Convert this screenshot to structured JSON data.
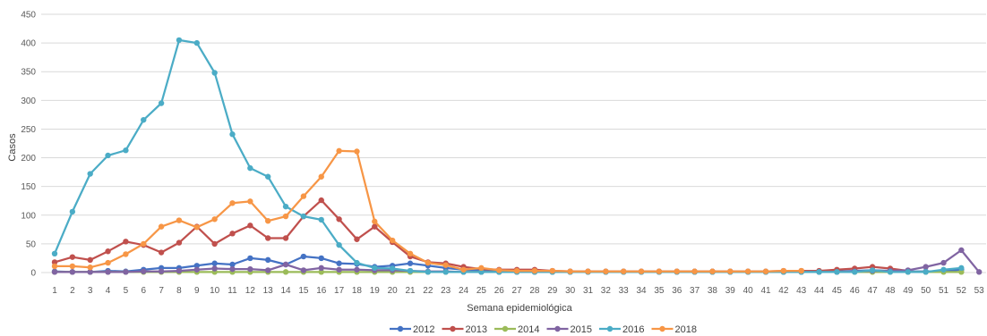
{
  "chart_data": {
    "type": "line",
    "xlabel": "Semana epidemiológica",
    "ylabel": "Casos",
    "ylim": [
      0,
      450
    ],
    "yticks": [
      0,
      50,
      100,
      150,
      200,
      250,
      300,
      350,
      400,
      450
    ],
    "grid": true,
    "legend_position": "bottom",
    "x": [
      1,
      2,
      3,
      4,
      5,
      6,
      7,
      8,
      9,
      10,
      11,
      12,
      13,
      14,
      15,
      16,
      17,
      18,
      19,
      20,
      21,
      22,
      23,
      24,
      25,
      26,
      27,
      28,
      29,
      30,
      31,
      32,
      33,
      34,
      35,
      36,
      37,
      38,
      39,
      40,
      41,
      42,
      43,
      44,
      45,
      46,
      47,
      48,
      49,
      50,
      51,
      52,
      53
    ],
    "x_tick_labels": [
      "1",
      "2",
      "3",
      "4",
      "5",
      "6",
      "7",
      "8",
      "9",
      "10",
      "11",
      "12",
      "13",
      "14",
      "15",
      "16",
      "17",
      "18",
      "19",
      "20",
      "21",
      "22",
      "23",
      "24",
      "25",
      "26",
      "27",
      "28",
      "29",
      "30",
      "31",
      "32",
      "33",
      "34",
      "35",
      "36",
      "37",
      "38",
      "39",
      "40",
      "41",
      "42",
      "43",
      "44",
      "45",
      "46",
      "47",
      "48",
      "49",
      "50",
      "51",
      "52",
      "53"
    ],
    "series": [
      {
        "name": "2012",
        "color": "#4472C4",
        "values": [
          2,
          1,
          1,
          3,
          2,
          5,
          8,
          8,
          12,
          16,
          14,
          25,
          22,
          14,
          28,
          25,
          16,
          15,
          10,
          12,
          16,
          12,
          8,
          5,
          4,
          4,
          3,
          3,
          2,
          2,
          2,
          2,
          2,
          2,
          2,
          2,
          2,
          2,
          2,
          2,
          2,
          2,
          2,
          2,
          2,
          3,
          4,
          3,
          2,
          2,
          2,
          5,
          null
        ]
      },
      {
        "name": "2013",
        "color": "#C0504D",
        "values": [
          18,
          27,
          22,
          37,
          54,
          48,
          35,
          52,
          80,
          50,
          68,
          82,
          60,
          60,
          98,
          126,
          93,
          58,
          80,
          53,
          28,
          18,
          16,
          10,
          6,
          5,
          5,
          5,
          3,
          2,
          2,
          2,
          2,
          2,
          2,
          2,
          2,
          2,
          2,
          2,
          2,
          3,
          3,
          3,
          5,
          7,
          10,
          7,
          3,
          null,
          null,
          null,
          null
        ]
      },
      {
        "name": "2014",
        "color": "#9BBB59",
        "values": [
          1,
          1,
          1,
          1,
          1,
          1,
          1,
          1,
          1,
          1,
          1,
          1,
          1,
          1,
          1,
          1,
          1,
          1,
          1,
          1,
          1,
          1,
          1,
          1,
          1,
          1,
          1,
          1,
          1,
          1,
          1,
          1,
          1,
          1,
          1,
          1,
          1,
          1,
          1,
          1,
          1,
          1,
          1,
          1,
          1,
          1,
          1,
          1,
          1,
          1,
          1,
          1,
          null
        ]
      },
      {
        "name": "2015",
        "color": "#8064A2",
        "values": [
          1,
          1,
          1,
          1,
          1,
          2,
          2,
          3,
          5,
          7,
          6,
          6,
          4,
          14,
          4,
          8,
          5,
          5,
          4,
          4,
          3,
          2,
          2,
          1,
          1,
          1,
          1,
          1,
          1,
          1,
          1,
          1,
          1,
          1,
          1,
          1,
          1,
          1,
          1,
          1,
          1,
          1,
          1,
          1,
          1,
          2,
          3,
          3,
          4,
          10,
          17,
          39,
          1
        ]
      },
      {
        "name": "2016",
        "color": "#4BACC6",
        "values": [
          33,
          106,
          172,
          204,
          213,
          266,
          295,
          405,
          400,
          348,
          241,
          182,
          167,
          115,
          98,
          92,
          48,
          17,
          8,
          7,
          3,
          1,
          1,
          1,
          1,
          1,
          1,
          1,
          1,
          1,
          1,
          1,
          1,
          1,
          1,
          1,
          1,
          1,
          1,
          1,
          1,
          1,
          1,
          1,
          1,
          1,
          4,
          1,
          1,
          1,
          5,
          8,
          null
        ]
      },
      {
        "name": "2018",
        "color": "#F79646",
        "values": [
          11,
          11,
          9,
          17,
          32,
          50,
          80,
          91,
          79,
          93,
          121,
          124,
          90,
          98,
          133,
          167,
          212,
          211,
          89,
          56,
          33,
          17,
          13,
          5,
          8,
          4,
          3,
          3,
          3,
          2,
          2,
          2,
          2,
          2,
          2,
          2,
          2,
          2,
          2,
          2,
          2,
          3,
          3,
          null,
          null,
          null,
          null,
          null,
          null,
          null,
          null,
          null,
          null
        ]
      }
    ]
  }
}
